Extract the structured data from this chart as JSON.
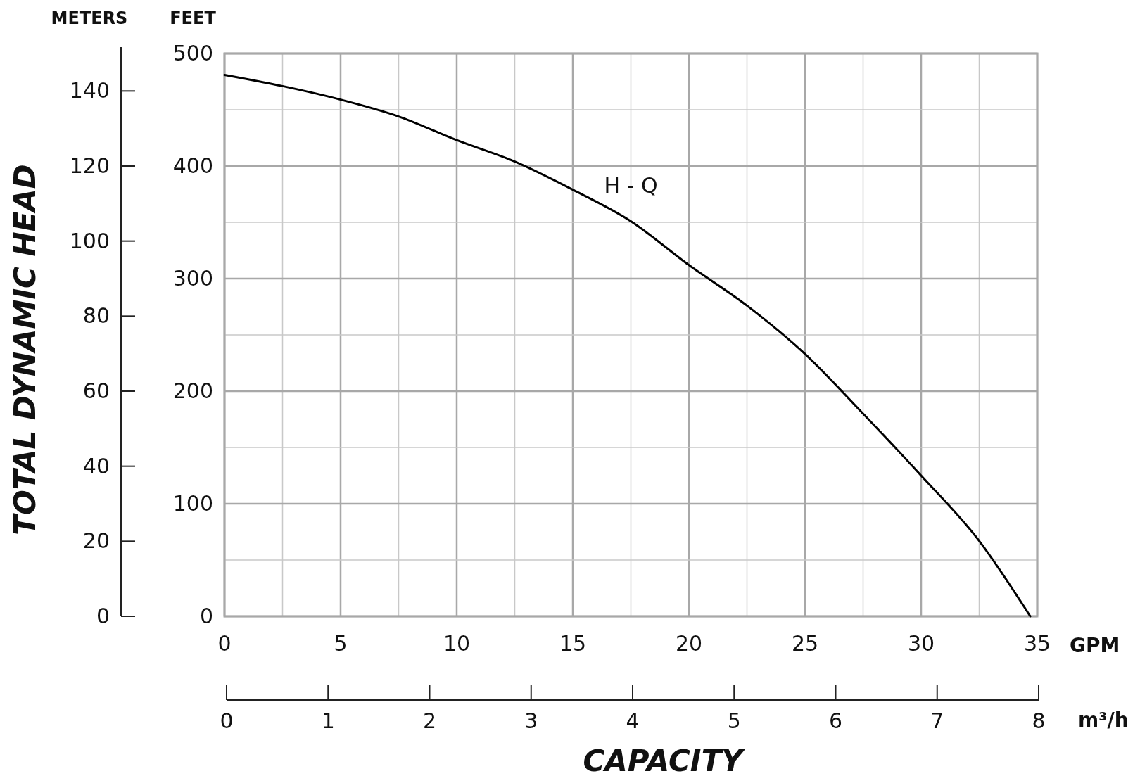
{
  "chart_data": {
    "type": "line",
    "xlabel": "GPM",
    "ylabel": "FEET",
    "y2label": "METERS",
    "x2label": "m³/h",
    "annotations": [
      "TOTAL DYNAMIC HEAD",
      "CAPACITY"
    ],
    "xlim": [
      0,
      35
    ],
    "xticks": [
      0,
      {
        "value": 2.5,
        "label": null
      },
      5,
      {
        "value": 7.5,
        "label": null
      },
      10,
      {
        "value": 12.5,
        "label": null
      },
      15,
      {
        "value": 17.5,
        "label": null
      },
      20,
      {
        "value": 22.5,
        "label": null
      },
      25,
      {
        "value": 27.5,
        "label": null
      },
      30,
      {
        "value": 32.5,
        "label": null
      },
      35
    ],
    "ylim": [
      0,
      500
    ],
    "yticks": [
      0,
      {
        "value": 50,
        "label": null
      },
      100,
      {
        "value": 150,
        "label": null
      },
      200,
      {
        "value": 250,
        "label": null
      },
      300,
      {
        "value": 350,
        "label": null
      },
      400,
      {
        "value": 450,
        "label": null
      },
      500
    ],
    "y2lim": [
      0,
      150
    ],
    "y2ticks": [
      0,
      20,
      40,
      60,
      80,
      100,
      120,
      140
    ],
    "x2lim": [
      0,
      8
    ],
    "x2ticks": [
      0,
      1,
      2,
      3,
      4,
      5,
      6,
      7,
      8
    ],
    "grid": true,
    "marker": "none",
    "line_style": "solid",
    "series": [
      {
        "name": "H - Q",
        "color": "#000000",
        "x": [
          0,
          2.5,
          5,
          7.5,
          10,
          12.5,
          15,
          17.5,
          20,
          22.5,
          25,
          27.5,
          30,
          32.5,
          34.7
        ],
        "values": [
          481,
          471,
          459,
          444,
          423,
          404,
          379,
          351,
          312,
          276,
          233,
          180,
          125,
          67,
          0
        ]
      }
    ]
  }
}
